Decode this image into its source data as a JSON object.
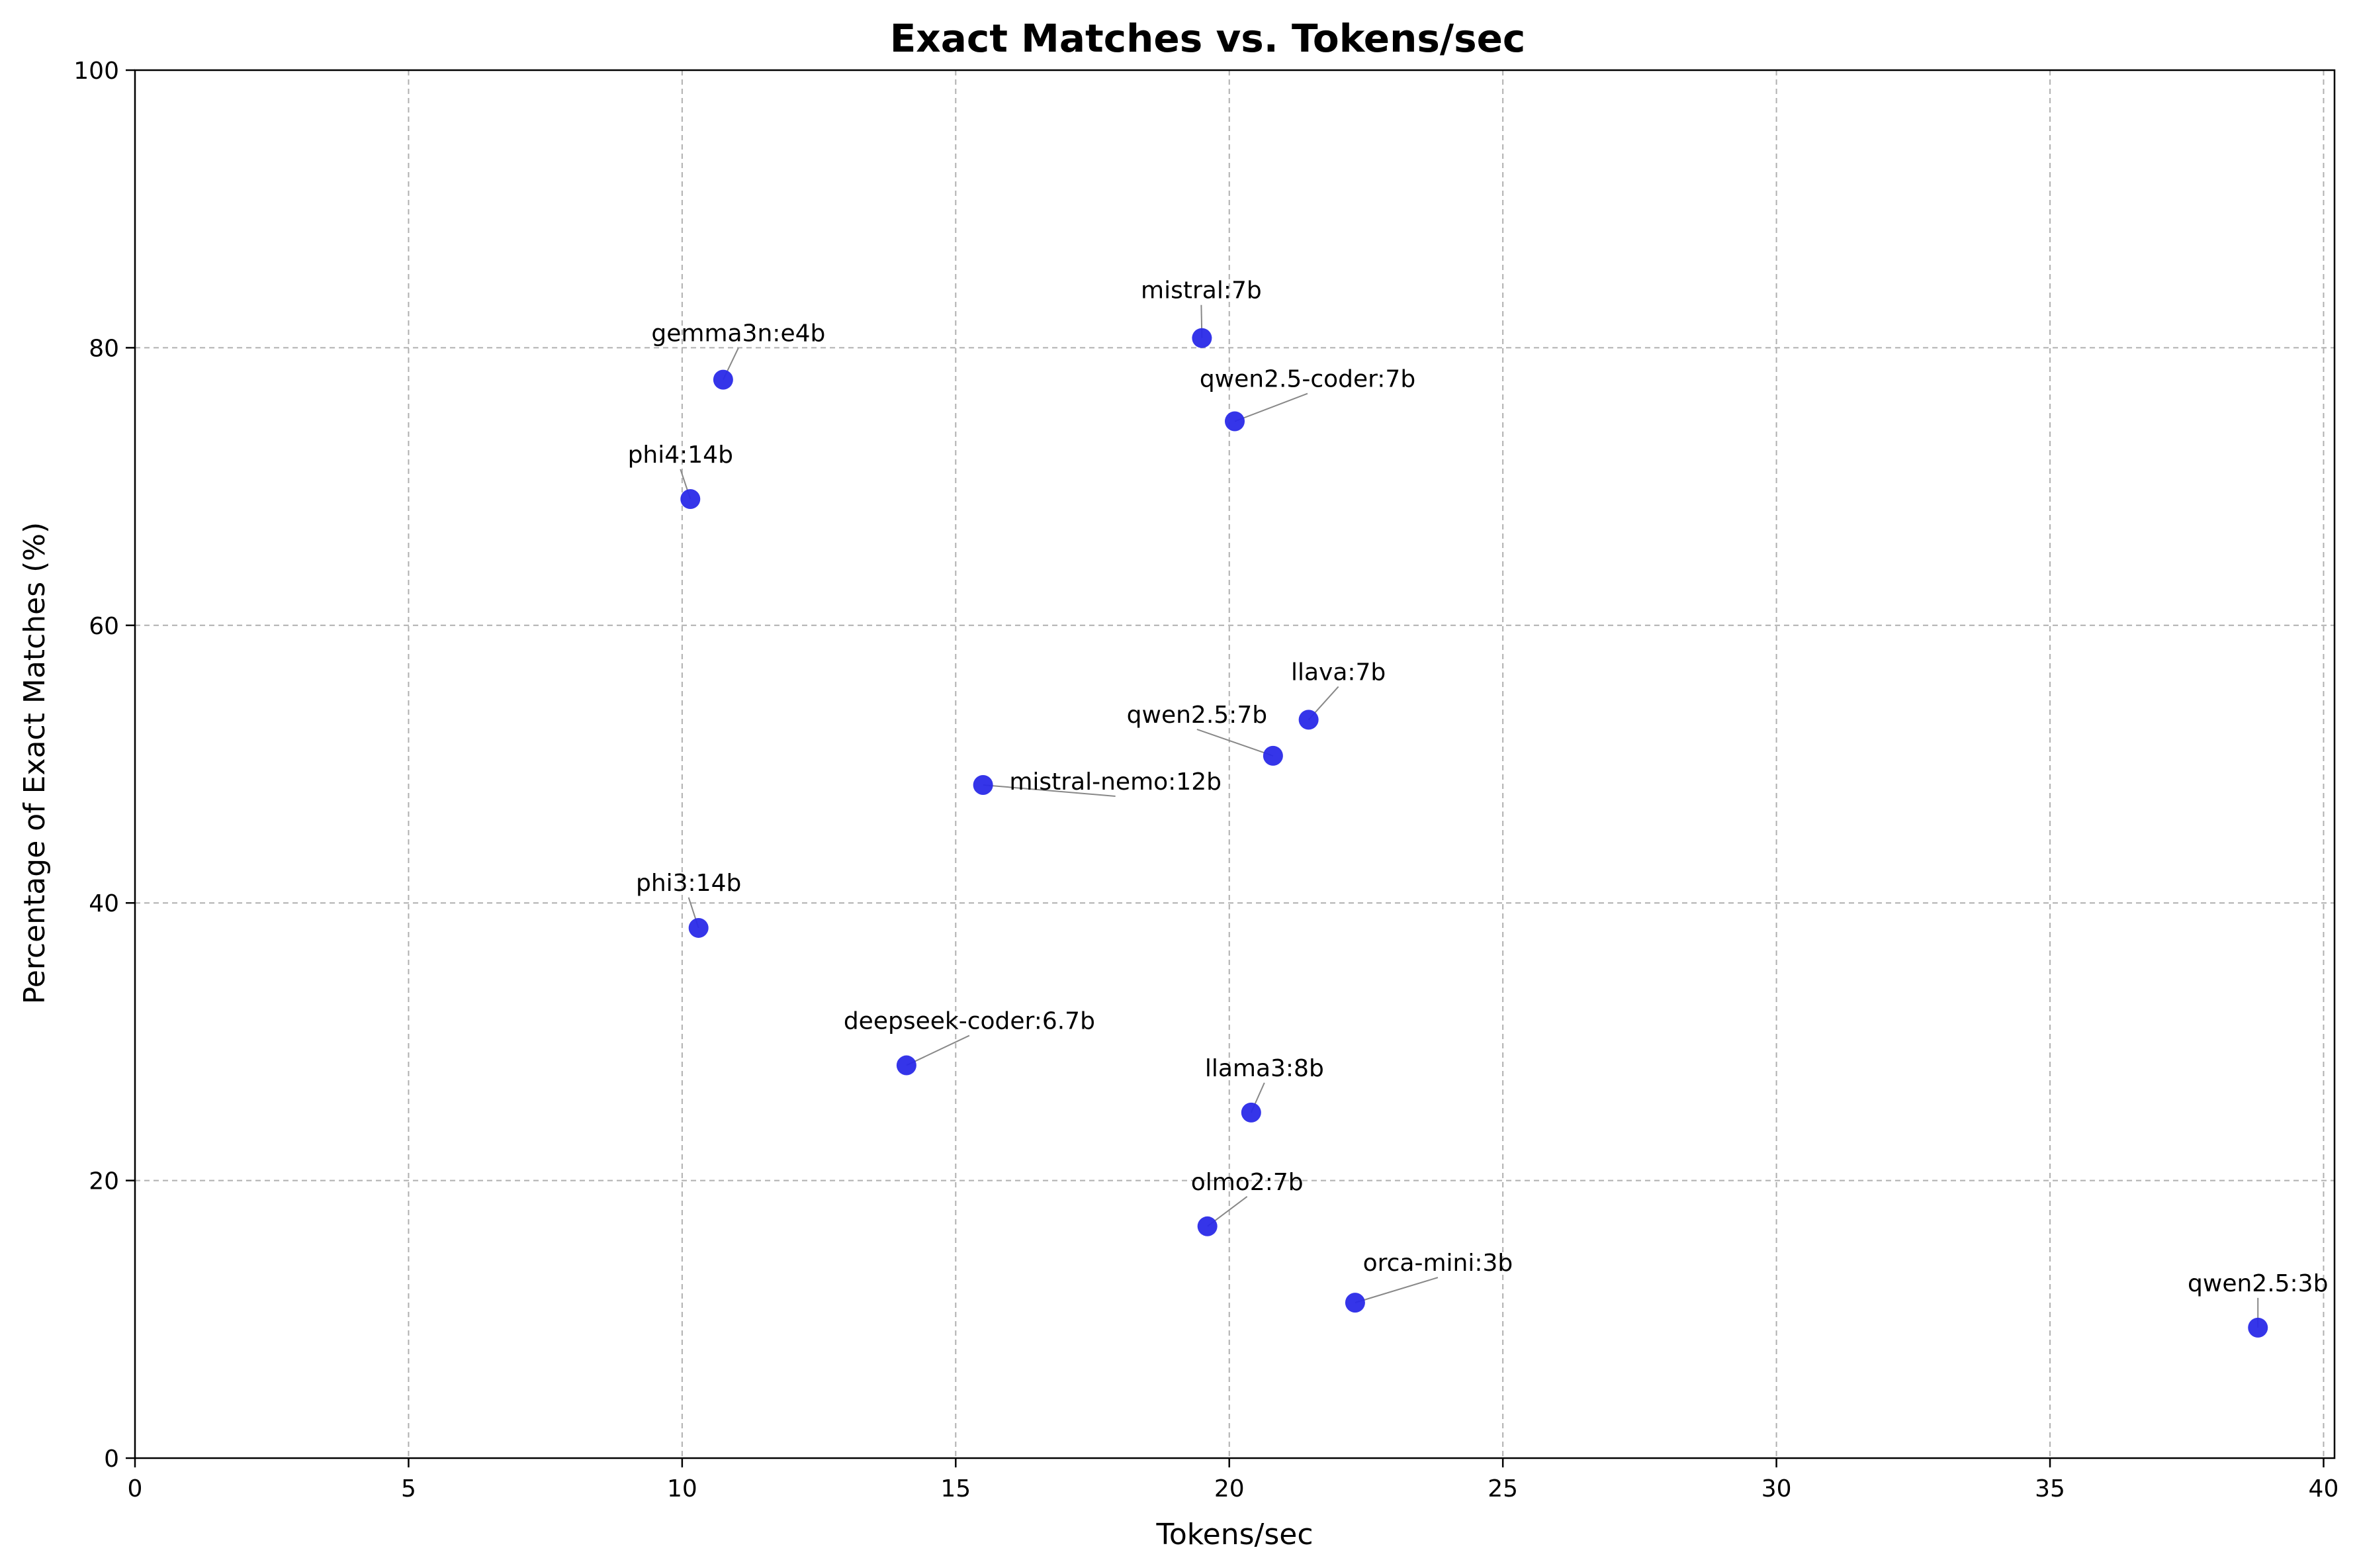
{
  "chart_data": {
    "type": "scatter",
    "title": "Exact Matches vs. Tokens/sec",
    "xlabel": "Tokens/sec",
    "ylabel": "Percentage of Exact Matches (%)",
    "xlim": [
      0,
      40.2
    ],
    "ylim": [
      0,
      100
    ],
    "x_ticks": [
      0,
      5,
      10,
      15,
      20,
      25,
      30,
      35,
      40
    ],
    "y_ticks": [
      0,
      20,
      40,
      60,
      80,
      100
    ],
    "grid": true,
    "marker_color": "#2a2ae8",
    "points": [
      {
        "label": "mistral:7b",
        "x": 19.5,
        "y": 80.7
      },
      {
        "label": "gemma3n:e4b",
        "x": 10.75,
        "y": 77.7
      },
      {
        "label": "qwen2.5-coder:7b",
        "x": 20.1,
        "y": 74.7
      },
      {
        "label": "phi4:14b",
        "x": 10.15,
        "y": 69.1
      },
      {
        "label": "llava:7b",
        "x": 21.45,
        "y": 53.2
      },
      {
        "label": "qwen2.5:7b",
        "x": 20.8,
        "y": 50.6
      },
      {
        "label": "mistral-nemo:12b",
        "x": 15.5,
        "y": 48.5
      },
      {
        "label": "phi3:14b",
        "x": 10.3,
        "y": 38.2
      },
      {
        "label": "deepseek-coder:6.7b",
        "x": 14.1,
        "y": 28.3
      },
      {
        "label": "llama3:8b",
        "x": 20.4,
        "y": 24.9
      },
      {
        "label": "olmo2:7b",
        "x": 19.6,
        "y": 16.7
      },
      {
        "label": "orca-mini:3b",
        "x": 22.3,
        "y": 11.2
      },
      {
        "label": "qwen2.5:3b",
        "x": 38.8,
        "y": 9.4
      }
    ]
  }
}
